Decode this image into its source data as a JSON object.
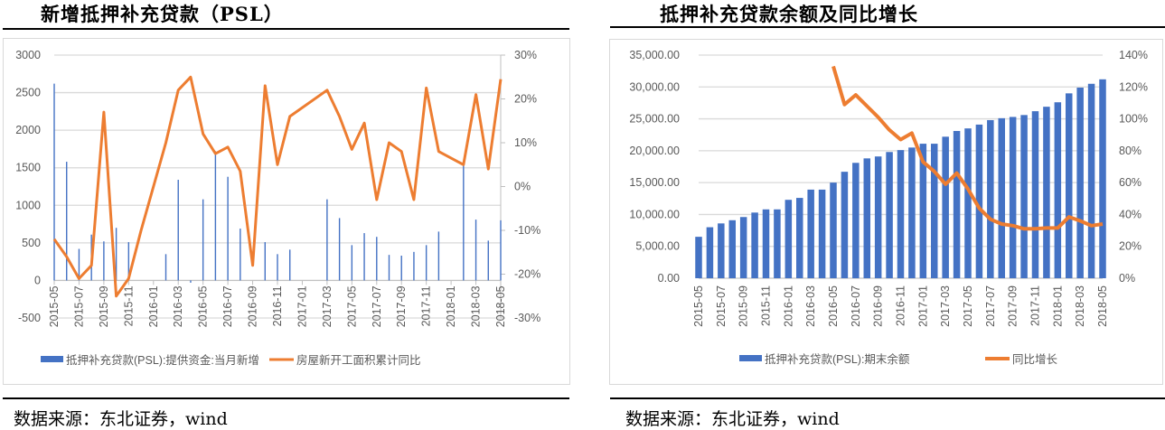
{
  "left": {
    "title": "新增抵押补充贷款（PSL）",
    "source": "数据来源：东北证券，wind"
  },
  "right": {
    "title": "抵押补充贷款余额及同比增长",
    "source": "数据来源：东北证券，wind"
  },
  "colors": {
    "bar": "#4472c4",
    "line": "#ed7d31",
    "grid": "#d9d9d9"
  },
  "chart_data": [
    {
      "type": "bar+line",
      "title": "新增抵押补充贷款（PSL）",
      "categories": [
        "2015-05",
        "2015-06",
        "2015-07",
        "2015-08",
        "2015-09",
        "2015-10",
        "2015-11",
        "2015-12",
        "2016-01",
        "2016-02",
        "2016-03",
        "2016-04",
        "2016-05",
        "2016-06",
        "2016-07",
        "2016-08",
        "2016-09",
        "2016-10",
        "2016-11",
        "2016-12",
        "2017-01",
        "2017-02",
        "2017-03",
        "2017-04",
        "2017-05",
        "2017-06",
        "2017-07",
        "2017-08",
        "2017-09",
        "2017-10",
        "2017-11",
        "2017-12",
        "2018-01",
        "2018-02",
        "2018-03",
        "2018-04",
        "2018-05"
      ],
      "series": [
        {
          "name": "抵押补充贷款(PSL):提供资金:当月新增",
          "axis": "left",
          "type": "bar",
          "values": [
            2620,
            1580,
            420,
            610,
            520,
            700,
            510,
            null,
            null,
            350,
            1340,
            -30,
            1080,
            1720,
            1380,
            690,
            null,
            510,
            350,
            410,
            null,
            null,
            1080,
            830,
            470,
            630,
            580,
            340,
            330,
            380,
            470,
            650,
            null,
            1540,
            810,
            530,
            800
          ]
        },
        {
          "name": "房屋新开工面积累计同比",
          "axis": "right",
          "type": "line",
          "values": [
            -12,
            -16,
            -21,
            -18,
            17,
            -25,
            -21,
            -10,
            null,
            10,
            22,
            25,
            12,
            7.5,
            9,
            3.5,
            -18,
            23,
            5,
            16,
            null,
            null,
            22,
            16,
            8.5,
            14.5,
            -3,
            10,
            8,
            -3,
            22.5,
            8,
            null,
            5,
            21,
            4,
            24.5
          ]
        }
      ],
      "y_left": {
        "min": -500,
        "max": 3000,
        "step": 500,
        "ticks": [
          "3000",
          "2500",
          "2000",
          "1500",
          "1000",
          "500",
          "0",
          "-500"
        ]
      },
      "y_right": {
        "min": -30,
        "max": 30,
        "step": 10,
        "ticks": [
          "30%",
          "20%",
          "10%",
          "0%",
          "-10%",
          "-20%",
          "-30%"
        ]
      },
      "legend": "bottom"
    },
    {
      "type": "bar+line",
      "title": "抵押补充贷款余额及同比增长",
      "categories": [
        "2015-05",
        "2015-06",
        "2015-07",
        "2015-08",
        "2015-09",
        "2015-10",
        "2015-11",
        "2015-12",
        "2016-01",
        "2016-02",
        "2016-03",
        "2016-04",
        "2016-05",
        "2016-06",
        "2016-07",
        "2016-08",
        "2016-09",
        "2016-10",
        "2016-11",
        "2016-12",
        "2017-01",
        "2017-02",
        "2017-03",
        "2017-04",
        "2017-05",
        "2017-06",
        "2017-07",
        "2017-08",
        "2017-09",
        "2017-10",
        "2017-11",
        "2017-12",
        "2018-01",
        "2018-02",
        "2018-03",
        "2018-04",
        "2018-05"
      ],
      "series": [
        {
          "name": "抵押补充贷款(PSL):期末余额",
          "axis": "left",
          "type": "bar",
          "values": [
            6500,
            8000,
            8600,
            9100,
            9600,
            10300,
            10800,
            10800,
            12300,
            12600,
            13900,
            13900,
            15000,
            16700,
            18100,
            18800,
            19100,
            19800,
            20100,
            20500,
            21100,
            21100,
            22200,
            23100,
            23500,
            24100,
            24800,
            25100,
            25300,
            25600,
            26200,
            26900,
            27600,
            29000,
            29900,
            30500,
            31200
          ]
        },
        {
          "name": "同比增长",
          "axis": "right",
          "type": "line",
          "values": [
            null,
            null,
            null,
            null,
            null,
            null,
            null,
            null,
            null,
            null,
            null,
            null,
            133,
            109,
            115,
            108,
            101,
            93,
            87,
            91,
            73,
            67,
            59,
            66,
            56,
            44,
            37,
            34,
            33,
            31,
            31,
            31.5,
            31.5,
            38.5,
            36,
            33,
            34
          ]
        }
      ],
      "y_left": {
        "min": 0,
        "max": 35000,
        "step": 5000,
        "ticks": [
          "35,000.00",
          "30,000.00",
          "25,000.00",
          "20,000.00",
          "15,000.00",
          "10,000.00",
          "5,000.00",
          "0.00"
        ]
      },
      "y_right": {
        "min": 0,
        "max": 140,
        "step": 20,
        "ticks": [
          "140%",
          "120%",
          "100%",
          "80%",
          "60%",
          "40%",
          "20%",
          "0%"
        ]
      },
      "legend": "bottom"
    }
  ]
}
